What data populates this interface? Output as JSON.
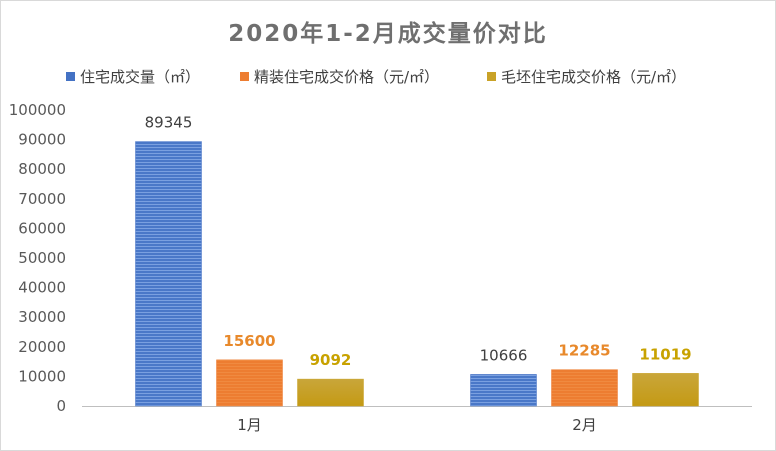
{
  "chart_data": {
    "type": "bar",
    "title": "2020年1-2月成交量价对比",
    "categories": [
      "1月",
      "2月"
    ],
    "series": [
      {
        "name": "住宅成交量（㎡）",
        "values": [
          89345,
          10666
        ],
        "color": "#4472c4",
        "label_color": "#404040",
        "label_bold": false
      },
      {
        "name": "精装住宅成交价格（元/㎡）",
        "values": [
          15600,
          12285
        ],
        "color": "#ed7d31",
        "label_color": "#e8892b",
        "label_bold": true
      },
      {
        "name": "毛坯住宅成交价格（元/㎡）",
        "values": [
          9092,
          11019
        ],
        "color": "#c9a227",
        "label_color": "#c8a200",
        "label_bold": true
      }
    ],
    "y_ticks": [
      "0",
      "10000",
      "20000",
      "30000",
      "40000",
      "50000",
      "60000",
      "70000",
      "80000",
      "90000",
      "100000"
    ],
    "ylim": [
      0,
      100000
    ],
    "legend_position": "top",
    "grid": false
  }
}
